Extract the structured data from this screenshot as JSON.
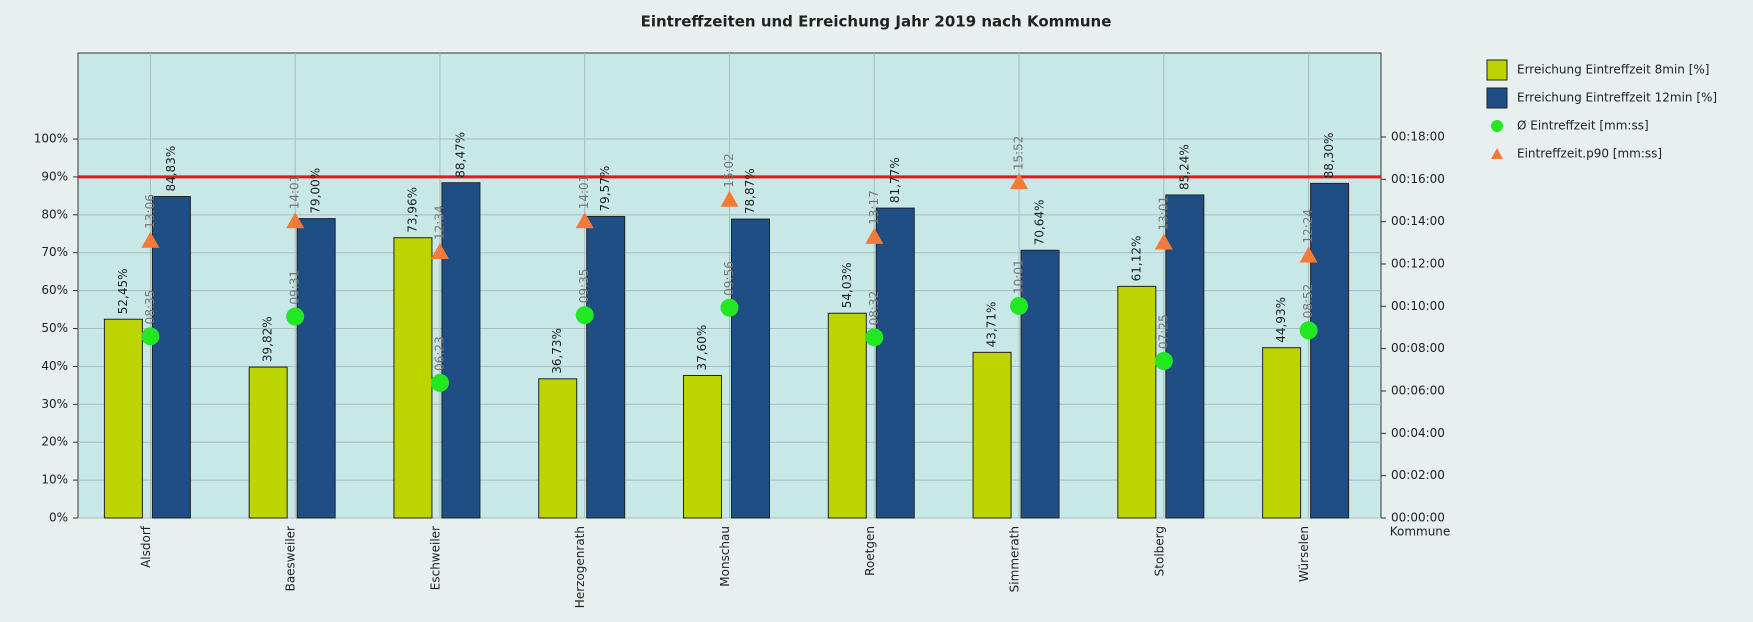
{
  "chart_data": {
    "type": "bar",
    "title": "Eintreffzeiten und Erreichung Jahr 2019 nach Kommune",
    "x_label": "Kommune",
    "categories": [
      "Alsdorf",
      "Baesweiler",
      "Eschweiler",
      "Herzogenrath",
      "Monschau",
      "Roetgen",
      "Simmerath",
      "Stolberg",
      "Würselen"
    ],
    "ylim": [
      0,
      122.7
    ],
    "yticks": [
      {
        "value": 0,
        "label": "0%"
      },
      {
        "value": 10,
        "label": "10%"
      },
      {
        "value": 20,
        "label": "20%"
      },
      {
        "value": 30,
        "label": "30%"
      },
      {
        "value": 40,
        "label": "40%"
      },
      {
        "value": 50,
        "label": "50%"
      },
      {
        "value": 60,
        "label": "60%"
      },
      {
        "value": 70,
        "label": "70%"
      },
      {
        "value": 80,
        "label": "80%"
      },
      {
        "value": 90,
        "label": "90%"
      },
      {
        "value": 100,
        "label": "100%"
      }
    ],
    "y2lim": [
      0,
      1318
    ],
    "y2ticks": [
      {
        "value": 0,
        "label": "00:00:00"
      },
      {
        "value": 120,
        "label": "00:02:00"
      },
      {
        "value": 240,
        "label": "00:04:00"
      },
      {
        "value": 360,
        "label": "00:06:00"
      },
      {
        "value": 480,
        "label": "00:08:00"
      },
      {
        "value": 600,
        "label": "00:10:00"
      },
      {
        "value": 720,
        "label": "00:12:00"
      },
      {
        "value": 840,
        "label": "00:14:00"
      },
      {
        "value": 960,
        "label": "00:16:00"
      },
      {
        "value": 1080,
        "label": "00:18:00"
      }
    ],
    "grid": true,
    "reference_line": {
      "value": 90,
      "color": "#e8161b"
    },
    "series": [
      {
        "name": "Erreichung Eintreffzeit 8min [%]",
        "type": "bar",
        "color": "#bcd400",
        "values": [
          52.45,
          39.82,
          73.96,
          36.73,
          37.6,
          54.03,
          43.71,
          61.12,
          44.93
        ],
        "value_labels": [
          "52,45%",
          "39,82%",
          "73,96%",
          "36,73%",
          "37,60%",
          "54,03%",
          "43,71%",
          "61,12%",
          "44,93%"
        ]
      },
      {
        "name": "Erreichung Eintreffzeit 12min [%]",
        "type": "bar",
        "color": "#1f4e85",
        "values": [
          84.83,
          79.0,
          88.47,
          79.57,
          78.87,
          81.77,
          70.64,
          85.24,
          88.3
        ],
        "value_labels": [
          "84,83%",
          "79,00%",
          "88,47%",
          "79,57%",
          "78,87%",
          "81,77%",
          "70,64%",
          "85,24%",
          "88,30%"
        ]
      },
      {
        "name": "Ø Eintreffzeit [mm:ss]",
        "type": "scatter",
        "marker": "circle",
        "axis": "y2",
        "color": "#22e822",
        "values": [
          515,
          571,
          383,
          575,
          596,
          512,
          601,
          445,
          532
        ],
        "value_labels": [
          "08:35",
          "09:31",
          "06:23",
          "09:35",
          "09:56",
          "08:32",
          "10:01",
          "07:25",
          "08:52"
        ]
      },
      {
        "name": "Eintreffzeit.p90 [mm:ss]",
        "type": "scatter",
        "marker": "triangle",
        "axis": "y2",
        "color": "#f47a3a",
        "values": [
          786,
          841,
          754,
          841,
          902,
          797,
          952,
          781,
          744
        ],
        "value_labels": [
          "13:06",
          "14:01",
          "12:34",
          "14:01",
          "15:02",
          "13:17",
          "15:52",
          "13:01",
          "12:24"
        ]
      }
    ]
  }
}
